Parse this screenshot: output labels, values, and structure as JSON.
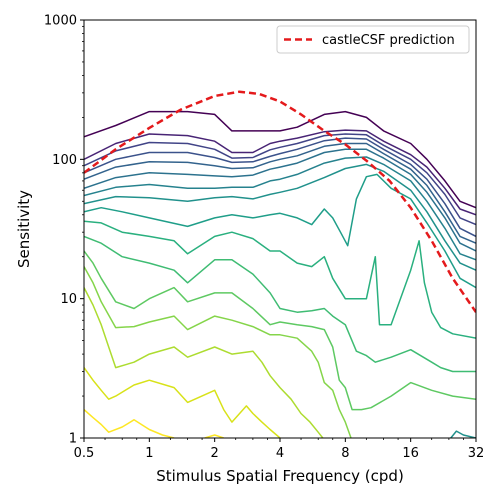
{
  "chart_data": {
    "type": "line",
    "title": "",
    "xlabel": "Stimulus Spatial Frequency (cpd)",
    "ylabel": "Sensitivity",
    "xscale": "log2",
    "yscale": "log10",
    "xlim": [
      0.5,
      32
    ],
    "ylim": [
      1,
      1000
    ],
    "x_ticks": [
      0.5,
      1,
      2,
      4,
      8,
      16,
      32
    ],
    "x_tick_labels": [
      "0.5",
      "1",
      "2",
      "4",
      "8",
      "16",
      "32"
    ],
    "y_ticks": [
      1,
      10,
      100,
      1000
    ],
    "y_tick_labels": [
      "1",
      "10",
      "100",
      "1000"
    ],
    "grid": false,
    "legend": {
      "placement": "top-right",
      "entries": [
        "castleCSF prediction"
      ]
    },
    "series": [
      {
        "name": "castleCSF prediction",
        "color": "#e41a1c",
        "style": "dashed",
        "x": [
          0.5,
          0.7,
          1.0,
          1.4,
          2.0,
          2.6,
          3.2,
          4.0,
          5.0,
          6.4,
          8.0,
          10.0,
          12.8,
          16.0,
          20.0,
          25.0,
          32.0
        ],
        "y": [
          80,
          118,
          168,
          228,
          285,
          306,
          295,
          260,
          210,
          160,
          128,
          98,
          70,
          45,
          26,
          14,
          8
        ]
      }
    ],
    "contours": [
      {
        "color": "#440154",
        "x": [
          0.5,
          0.7,
          1.0,
          1.5,
          2.0,
          2.4,
          3.0,
          3.6,
          4.0,
          4.8,
          6.4,
          8.0,
          10.0,
          12.0,
          16.0,
          19.0,
          23.0,
          27.0,
          32.0
        ],
        "y": [
          145,
          175,
          220,
          220,
          210,
          160,
          160,
          160,
          160,
          170,
          210,
          220,
          200,
          160,
          130,
          100,
          70,
          50,
          45
        ]
      },
      {
        "color": "#482475",
        "x": [
          0.5,
          0.7,
          1.0,
          1.5,
          2.0,
          2.4,
          3.0,
          3.6,
          4.0,
          4.8,
          6.4,
          8.0,
          10.0,
          12.0,
          16.0,
          19.0,
          23.0,
          27.0,
          32.0
        ],
        "y": [
          100,
          130,
          152,
          148,
          135,
          112,
          112,
          130,
          135,
          142,
          158,
          162,
          160,
          135,
          108,
          88,
          62,
          44,
          40
        ]
      },
      {
        "color": "#414487",
        "x": [
          0.5,
          0.7,
          1.0,
          1.5,
          2.0,
          2.4,
          3.0,
          3.6,
          4.0,
          4.8,
          6.4,
          8.0,
          10.0,
          12.0,
          16.0,
          19.0,
          23.0,
          27.0,
          32.0
        ],
        "y": [
          90,
          115,
          132,
          130,
          118,
          102,
          103,
          117,
          122,
          130,
          148,
          152,
          150,
          126,
          100,
          80,
          56,
          38,
          34
        ]
      },
      {
        "color": "#3b528b",
        "x": [
          0.5,
          0.7,
          1.0,
          1.5,
          2.0,
          2.4,
          3.0,
          3.6,
          4.0,
          4.8,
          6.4,
          8.0,
          10.0,
          12.0,
          16.0,
          19.0,
          23.0,
          27.0,
          32.0
        ],
        "y": [
          80,
          100,
          112,
          112,
          103,
          95,
          96,
          105,
          110,
          118,
          136,
          142,
          140,
          118,
          92,
          72,
          48,
          32,
          28
        ]
      },
      {
        "color": "#33638d",
        "x": [
          0.5,
          0.7,
          1.0,
          1.5,
          2.0,
          2.4,
          3.0,
          3.6,
          4.0,
          4.8,
          6.4,
          8.0,
          10.0,
          12.0,
          16.0,
          19.0,
          23.0,
          27.0,
          32.0
        ],
        "y": [
          72,
          88,
          96,
          95,
          90,
          86,
          87,
          96,
          100,
          106,
          124,
          130,
          130,
          110,
          85,
          65,
          42,
          28,
          25
        ]
      },
      {
        "color": "#2c728e",
        "x": [
          0.5,
          0.7,
          1.0,
          1.5,
          2.0,
          2.4,
          3.0,
          3.6,
          4.0,
          4.8,
          6.4,
          8.0,
          10.0,
          12.0,
          16.0,
          19.0,
          23.0,
          27.0,
          32.0
        ],
        "y": [
          62,
          74,
          80,
          78,
          76,
          75,
          77,
          85,
          88,
          94,
          112,
          118,
          118,
          102,
          78,
          58,
          38,
          25,
          22
        ]
      },
      {
        "color": "#26828e",
        "x": [
          0.5,
          0.7,
          1.0,
          1.5,
          2.0,
          2.4,
          3.0,
          3.6,
          4.0,
          4.8,
          6.4,
          8.0,
          10.0,
          12.0,
          16.0,
          19.0,
          23.0,
          27.0,
          32.0
        ],
        "y": [
          55,
          63,
          66,
          62,
          62,
          63,
          63,
          70,
          72,
          78,
          94,
          102,
          104,
          92,
          70,
          50,
          32,
          21,
          19
        ]
      },
      {
        "color": "#21918c",
        "x": [
          0.5,
          0.7,
          1.0,
          1.5,
          2.0,
          2.4,
          3.0,
          3.6,
          4.0,
          4.8,
          6.4,
          8.0,
          10.0,
          12.0,
          16.0,
          19.0,
          23.0,
          27.0,
          32.0
        ],
        "y": [
          48,
          54,
          53,
          50,
          53,
          54,
          52,
          56,
          58,
          62,
          74,
          86,
          92,
          82,
          60,
          42,
          26,
          18,
          16
        ]
      },
      {
        "color": "#1f9e89",
        "x": [
          0.5,
          0.6,
          0.75,
          1.0,
          1.5,
          2.0,
          2.4,
          3.0,
          3.6,
          4.0,
          4.8,
          5.6,
          6.4,
          7.0,
          7.6,
          8.2,
          9.0,
          10.0,
          11.2,
          12.0,
          13.0,
          16.0,
          19.0,
          23.0,
          27.0,
          32.0
        ],
        "y": [
          42,
          45,
          42,
          38,
          33,
          38,
          40,
          38,
          40,
          41,
          38,
          34,
          44,
          38,
          30,
          24,
          52,
          75,
          78,
          70,
          62,
          52,
          35,
          22,
          14,
          12
        ]
      },
      {
        "color": "#2ab07f",
        "x": [
          0.5,
          0.6,
          0.75,
          1.0,
          1.3,
          1.5,
          2.0,
          2.4,
          3.0,
          3.6,
          4.0,
          4.8,
          5.6,
          6.4,
          7.0,
          8.0,
          9.0,
          10.0,
          11.0,
          11.5,
          13.0,
          16.0,
          17.5,
          18.5,
          20.0,
          22.0,
          25.0,
          32.0
        ],
        "y": [
          36,
          35,
          30,
          28,
          26,
          21,
          28,
          30,
          27,
          22,
          22,
          18,
          17,
          20,
          14,
          10,
          10,
          10,
          20,
          6.5,
          6.5,
          16,
          26,
          13,
          8,
          6.2,
          5.6,
          5.2
        ]
      },
      {
        "color": "#3fbc73",
        "x": [
          0.5,
          0.6,
          0.75,
          1.0,
          1.3,
          1.5,
          2.0,
          2.4,
          3.0,
          3.6,
          4.0,
          4.8,
          5.6,
          6.4,
          7.0,
          8.0,
          9.0,
          10.0,
          11.0,
          13.0,
          16.0,
          20.0,
          22.0,
          25.0,
          32.0
        ],
        "y": [
          28,
          25,
          20,
          18,
          16,
          13,
          19,
          19,
          15,
          11,
          8.5,
          8,
          8.2,
          8.5,
          7.5,
          6.5,
          4.2,
          3.9,
          3.5,
          3.8,
          4.3,
          3.5,
          3.2,
          3.0,
          3.0
        ]
      },
      {
        "color": "#5ec962",
        "x": [
          0.5,
          0.55,
          0.6,
          0.7,
          0.85,
          1.0,
          1.3,
          1.5,
          2.0,
          2.4,
          3.0,
          3.6,
          4.0,
          4.8,
          5.6,
          6.4,
          7.0,
          7.5,
          8.0,
          8.6,
          9.5,
          10.5,
          13.0,
          16.0,
          20.0,
          25.0,
          32.0
        ],
        "y": [
          22,
          18,
          14,
          9.5,
          8.5,
          10,
          12,
          9.5,
          11,
          11,
          8.5,
          6.5,
          6.8,
          6.5,
          6.3,
          6.0,
          4.5,
          2.6,
          2.3,
          1.6,
          1.6,
          1.65,
          2.0,
          2.5,
          2.2,
          2.0,
          1.9
        ]
      },
      {
        "color": "#85d54a",
        "x": [
          0.5,
          0.55,
          0.6,
          0.7,
          0.85,
          1.0,
          1.3,
          1.5,
          2.0,
          2.4,
          3.0,
          3.6,
          4.0,
          4.8,
          5.6,
          6.0,
          6.4,
          7.0,
          7.5,
          8.0,
          8.5
        ],
        "y": [
          17,
          13,
          9.5,
          6.2,
          6.3,
          6.8,
          7.5,
          6.0,
          7.5,
          7.0,
          6.3,
          5.5,
          5.5,
          5.2,
          4.2,
          3.5,
          2.5,
          2.2,
          1.6,
          1.3,
          1.0
        ]
      },
      {
        "color": "#addc30",
        "x": [
          0.5,
          0.55,
          0.6,
          0.65,
          0.7,
          0.85,
          1.0,
          1.3,
          1.5,
          2.0,
          2.4,
          3.0,
          3.3,
          3.6,
          4.0,
          4.5,
          5.0,
          5.5,
          6.0,
          6.3
        ],
        "y": [
          12,
          9.0,
          6.5,
          4.5,
          3.2,
          3.5,
          4.0,
          4.5,
          3.8,
          4.5,
          4.0,
          4.2,
          3.5,
          2.8,
          2.3,
          1.9,
          1.5,
          1.3,
          1.1,
          1.0
        ]
      },
      {
        "color": "#d8e219",
        "x": [
          0.5,
          0.55,
          0.6,
          0.65,
          0.7,
          0.85,
          1.0,
          1.3,
          1.5,
          2.0,
          2.2,
          2.4,
          2.8,
          3.0,
          3.3,
          3.6,
          4.0
        ],
        "y": [
          3.2,
          2.6,
          2.2,
          1.9,
          2.0,
          2.4,
          2.6,
          2.3,
          1.8,
          2.2,
          1.6,
          1.3,
          1.7,
          1.5,
          1.3,
          1.15,
          1.0
        ]
      },
      {
        "color": "#fde725",
        "x": [
          0.5,
          0.55,
          0.6,
          0.65,
          0.75,
          0.85,
          1.0,
          1.15,
          1.3
        ],
        "y": [
          1.6,
          1.4,
          1.25,
          1.1,
          1.2,
          1.35,
          1.15,
          1.05,
          1.0
        ]
      },
      {
        "color": "#fde725",
        "x": [
          1.8,
          2.0,
          2.2
        ],
        "y": [
          1.0,
          1.05,
          1.0
        ]
      },
      {
        "color": "#21918c",
        "x": [
          24.5,
          26.0,
          28.0,
          32.0
        ],
        "y": [
          1.0,
          1.12,
          1.05,
          1.0
        ]
      }
    ]
  }
}
